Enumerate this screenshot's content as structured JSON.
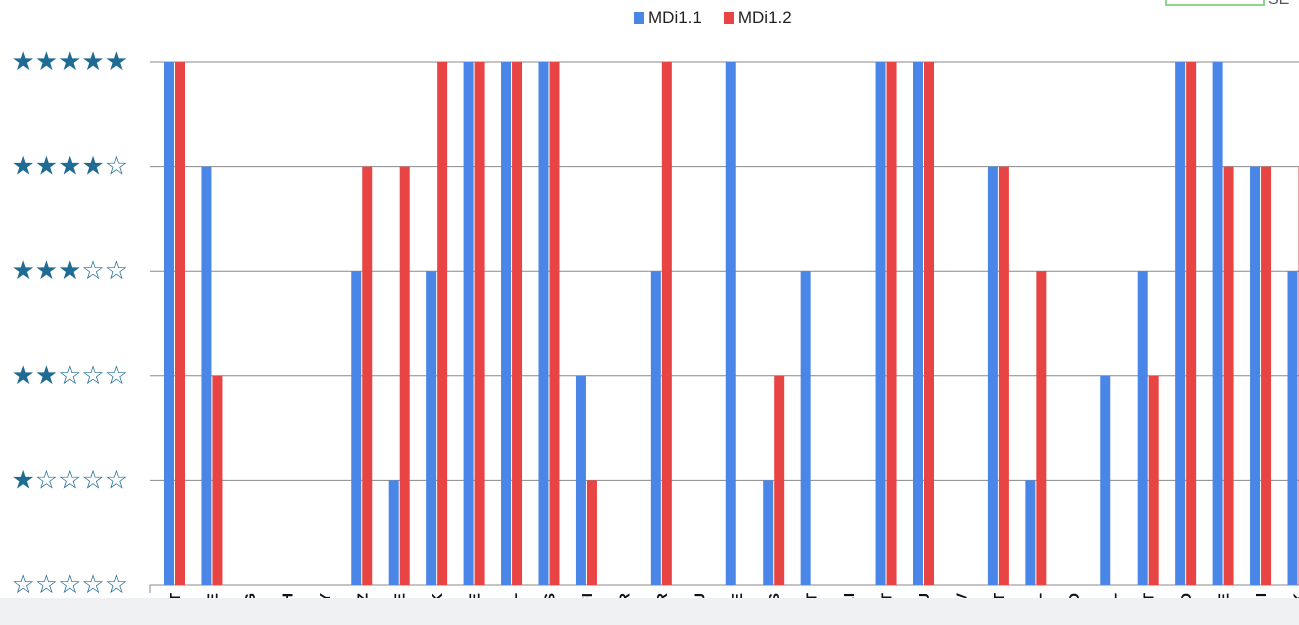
{
  "chart_data": {
    "type": "bar",
    "categories": [
      "AT",
      "BE",
      "BG",
      "CH",
      "CY",
      "CZ",
      "DE",
      "DK",
      "EE",
      "EL",
      "ES",
      "FI",
      "FR",
      "HR",
      "HU",
      "IE",
      "IS",
      "IT",
      "LI",
      "LT",
      "LU",
      "LV",
      "MT",
      "NL",
      "NO",
      "PL",
      "PT",
      "RO",
      "SE",
      "SI",
      "SK"
    ],
    "series": [
      {
        "name": "MDi1.1",
        "color": "#4a86e8",
        "values": [
          5,
          4,
          0,
          0,
          0,
          3,
          1,
          3,
          5,
          5,
          5,
          2,
          0,
          3,
          0,
          5,
          1,
          3,
          0,
          5,
          5,
          0,
          4,
          1,
          0,
          2,
          3,
          5,
          5,
          4,
          3
        ]
      },
      {
        "name": "MDi1.2",
        "color": "#e84444",
        "values": [
          5,
          2,
          0,
          0,
          0,
          4,
          4,
          5,
          5,
          5,
          5,
          1,
          0,
          5,
          0,
          0,
          2,
          0,
          0,
          5,
          5,
          0,
          4,
          3,
          0,
          0,
          2,
          5,
          4,
          4,
          4
        ]
      }
    ],
    "ylim": [
      0,
      5
    ],
    "y_tick_labels": [
      "☆☆☆☆☆",
      "★☆☆☆☆",
      "★★☆☆☆",
      "★★★☆☆",
      "★★★★☆",
      "★★★★★"
    ],
    "grid": true,
    "legend_position": "top"
  },
  "colors": {
    "star": "#1f6b94",
    "grid": "#888888",
    "axis_text": "#111111"
  },
  "corner_text": "SE"
}
